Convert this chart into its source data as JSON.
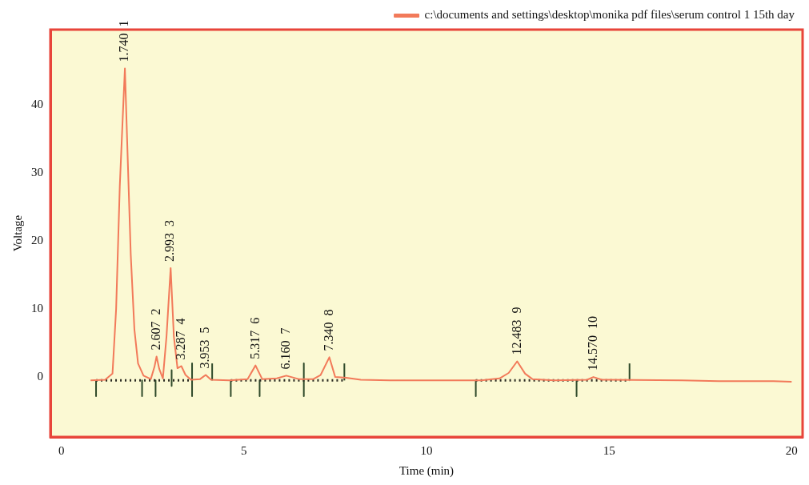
{
  "chart_data": {
    "type": "line",
    "xlabel": "Time (min)",
    "ylabel": "Voltage",
    "xlim": [
      -0.3,
      20.3
    ],
    "xticks": [
      0,
      5,
      10,
      15,
      20
    ],
    "ylim": [
      -8.8,
      51
    ],
    "yticks": [
      0,
      10,
      20,
      30,
      40
    ],
    "grid": false,
    "legend": "top right",
    "marker": "none",
    "series": [
      {
        "name": "c:\\documents and settings\\desktop\\monika pdf files\\serum control 1 15th day",
        "color": "#f27a5a",
        "x": [
          0.8,
          1.2,
          1.4,
          1.5,
          1.6,
          1.68,
          1.74,
          1.8,
          1.9,
          2.0,
          2.1,
          2.25,
          2.45,
          2.55,
          2.607,
          2.68,
          2.78,
          2.88,
          2.993,
          3.08,
          3.18,
          3.287,
          3.4,
          3.55,
          3.8,
          3.953,
          4.1,
          4.6,
          5.1,
          5.317,
          5.5,
          5.9,
          6.16,
          6.5,
          6.9,
          7.1,
          7.34,
          7.5,
          7.8,
          8.2,
          9.0,
          11.5,
          12.0,
          12.25,
          12.483,
          12.7,
          12.9,
          13.5,
          14.4,
          14.57,
          14.8,
          17.0,
          18.0,
          19.5,
          20.0
        ],
        "values": [
          -0.5,
          -0.4,
          0.5,
          10,
          28,
          38,
          45.3,
          35,
          18,
          7,
          2,
          0.2,
          -0.3,
          1.5,
          3.0,
          1.2,
          -0.2,
          6,
          16.0,
          6,
          1.3,
          1.6,
          0.3,
          -0.4,
          -0.3,
          0.3,
          -0.4,
          -0.5,
          -0.3,
          1.7,
          -0.3,
          -0.2,
          0.2,
          -0.3,
          -0.3,
          0.3,
          2.9,
          0.0,
          -0.1,
          -0.4,
          -0.5,
          -0.5,
          -0.2,
          0.6,
          2.3,
          0.5,
          -0.3,
          -0.5,
          -0.4,
          0.0,
          -0.4,
          -0.5,
          -0.6,
          -0.6,
          -0.7
        ]
      },
      {
        "color": "#2b2b22",
        "line_style": "dotted",
        "x": [
          0.95,
          3.58
        ],
        "values": [
          -0.5,
          -0.5
        ]
      },
      {
        "color": "#2b2b22",
        "line_style": "dotted",
        "x": [
          4.64,
          7.75
        ],
        "values": [
          -0.5,
          -0.5
        ]
      },
      {
        "color": "#2b2b22",
        "line_style": "dotted",
        "x": [
          11.35,
          15.56
        ],
        "values": [
          -0.5,
          -0.5
        ]
      },
      {
        "color": "#2f4a2a",
        "x": [
          0.95,
          0.95
        ],
        "values": [
          -0.5,
          -2.8
        ]
      },
      {
        "color": "#2f4a2a",
        "x": [
          2.21,
          2.21
        ],
        "values": [
          -0.5,
          -2.8
        ]
      },
      {
        "color": "#2f4a2a",
        "x": [
          2.58,
          2.58
        ],
        "values": [
          -0.5,
          -2.8
        ]
      },
      {
        "color": "#2f4a2a",
        "x": [
          3.02,
          3.02
        ],
        "values": [
          1.0,
          -1.3
        ]
      },
      {
        "color": "#2f4a2a",
        "x": [
          3.58,
          3.58
        ],
        "values": [
          2.0,
          -2.8
        ]
      },
      {
        "color": "#2f4a2a",
        "x": [
          4.13,
          4.13
        ],
        "values": [
          -0.5,
          2.0
        ]
      },
      {
        "color": "#2f4a2a",
        "x": [
          4.64,
          4.64
        ],
        "values": [
          -0.5,
          -2.8
        ]
      },
      {
        "color": "#2f4a2a",
        "x": [
          5.43,
          5.43
        ],
        "values": [
          -0.5,
          -2.8
        ]
      },
      {
        "color": "#2f4a2a",
        "x": [
          6.64,
          6.64
        ],
        "values": [
          2.0,
          -2.8
        ]
      },
      {
        "color": "#2f4a2a",
        "x": [
          7.75,
          7.75
        ],
        "values": [
          -0.5,
          2.0
        ]
      },
      {
        "color": "#2f4a2a",
        "x": [
          11.35,
          11.35
        ],
        "values": [
          -0.5,
          -2.8
        ]
      },
      {
        "color": "#2f4a2a",
        "x": [
          14.11,
          14.11
        ],
        "values": [
          -0.5,
          -2.8
        ]
      },
      {
        "color": "#2f4a2a",
        "x": [
          15.56,
          15.56
        ],
        "values": [
          -0.5,
          2.0
        ]
      }
    ],
    "annotations": [
      {
        "text": "1.740  1",
        "x": 1.74,
        "y": 45.3
      },
      {
        "text": "2.607  2",
        "x": 2.607,
        "y": 3.0
      },
      {
        "text": "2.993  3",
        "x": 2.993,
        "y": 16.0
      },
      {
        "text": "3.287  4",
        "x": 3.287,
        "y": 1.6
      },
      {
        "text": "3.953  5",
        "x": 3.953,
        "y": 0.3
      },
      {
        "text": "5.317  6",
        "x": 5.317,
        "y": 1.7
      },
      {
        "text": "6.160  7",
        "x": 6.16,
        "y": 0.2
      },
      {
        "text": "7.340  8",
        "x": 7.34,
        "y": 2.9
      },
      {
        "text": "12.483  9",
        "x": 12.483,
        "y": 2.3
      },
      {
        "text": "14.570  10",
        "x": 14.57,
        "y": 0.0
      }
    ]
  }
}
